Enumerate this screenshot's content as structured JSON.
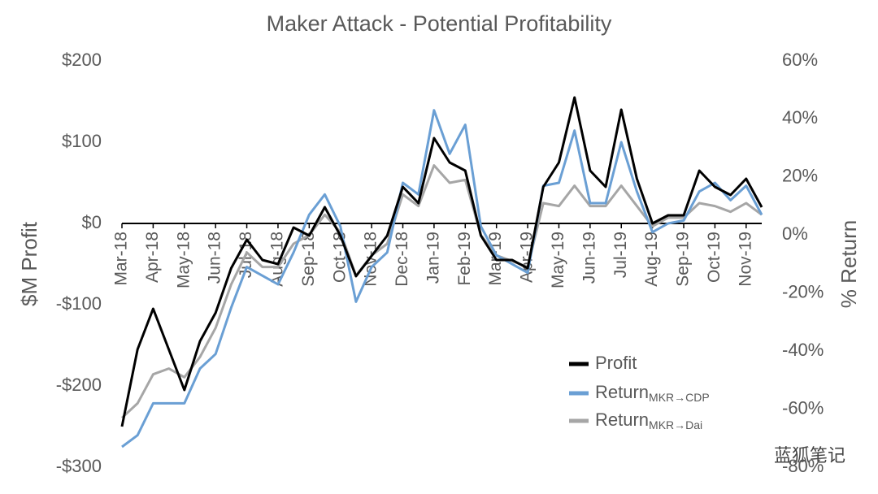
{
  "chart_data": {
    "type": "line",
    "title": "Maker Attack - Potential Profitability",
    "y_label": "$M Profit",
    "y2_label": "% Return",
    "watermark": "蓝狐笔记",
    "categories": [
      "Mar-18",
      null,
      "Apr-18",
      null,
      "May-18",
      null,
      "Jun-18",
      null,
      "Jul-18",
      null,
      "Aug-18",
      null,
      "Sep-18",
      null,
      "Oct-18",
      null,
      "Nov-18",
      null,
      "Dec-18",
      null,
      "Jan-19",
      null,
      "Feb-19",
      null,
      "Mar-19",
      null,
      "Apr-19",
      null,
      "May-19",
      null,
      "Jun-19",
      null,
      "Jul-19",
      null,
      "Aug-19",
      null,
      "Sep-19",
      null,
      "Oct-19",
      null,
      "Nov-19",
      null
    ],
    "series": [
      {
        "name": "Profit",
        "color": "#000000",
        "axis": "y",
        "values": [
          -250,
          -155,
          -105,
          -155,
          -205,
          -145,
          -110,
          -55,
          -20,
          -45,
          -50,
          -5,
          -15,
          20,
          -15,
          -65,
          -40,
          -15,
          45,
          25,
          105,
          75,
          65,
          -15,
          -45,
          -45,
          -55,
          45,
          75,
          155,
          65,
          45,
          140,
          55,
          0,
          10,
          10,
          65,
          45,
          35,
          55,
          20
        ]
      },
      {
        "name": "Return",
        "subscript": "MKR→CDP",
        "color": "#6a9fd4",
        "axis": "y2",
        "values": [
          -73,
          -69,
          -58,
          -58,
          -58,
          -46,
          -41,
          -25,
          -11,
          -14,
          -17,
          -6,
          7,
          14,
          3,
          -23,
          -11,
          -6,
          18,
          14,
          43,
          28,
          38,
          3,
          -7,
          -10,
          -13,
          17,
          18,
          36,
          11,
          11,
          32,
          15,
          1,
          4,
          5,
          15,
          18,
          12,
          17,
          7
        ]
      },
      {
        "name": "Return",
        "subscript": "MKR→Dai",
        "color": "#a6a6a6",
        "axis": "y2",
        "values": [
          -63,
          -58,
          -48,
          -46,
          -49,
          -42,
          -32,
          -17,
          -6,
          -11,
          -11,
          -3,
          0,
          7,
          1,
          -14,
          -7,
          -3,
          14,
          10,
          24,
          18,
          19,
          0,
          -7,
          -9,
          -11,
          11,
          10,
          17,
          10,
          10,
          17,
          10,
          3,
          6,
          6,
          11,
          10,
          8,
          11,
          7
        ]
      }
    ],
    "ylim": [
      -300,
      200
    ],
    "yticks": [
      {
        "value": -300,
        "label": "-$300"
      },
      {
        "value": -200,
        "label": "-$200"
      },
      {
        "value": -100,
        "label": "-$100"
      },
      {
        "value": 0,
        "label": "$0"
      },
      {
        "value": 100,
        "label": "$100"
      },
      {
        "value": 200,
        "label": "$200"
      }
    ],
    "y2lim": [
      -80,
      60
    ],
    "y2ticks": [
      {
        "value": -80,
        "label": "-80%"
      },
      {
        "value": -60,
        "label": "-60%"
      },
      {
        "value": -40,
        "label": "-40%"
      },
      {
        "value": -20,
        "label": "-20%"
      },
      {
        "value": 0,
        "label": "0%"
      },
      {
        "value": 20,
        "label": "20%"
      },
      {
        "value": 40,
        "label": "40%"
      },
      {
        "value": 60,
        "label": "60%"
      }
    ],
    "grid": false,
    "legend": "lower right"
  }
}
